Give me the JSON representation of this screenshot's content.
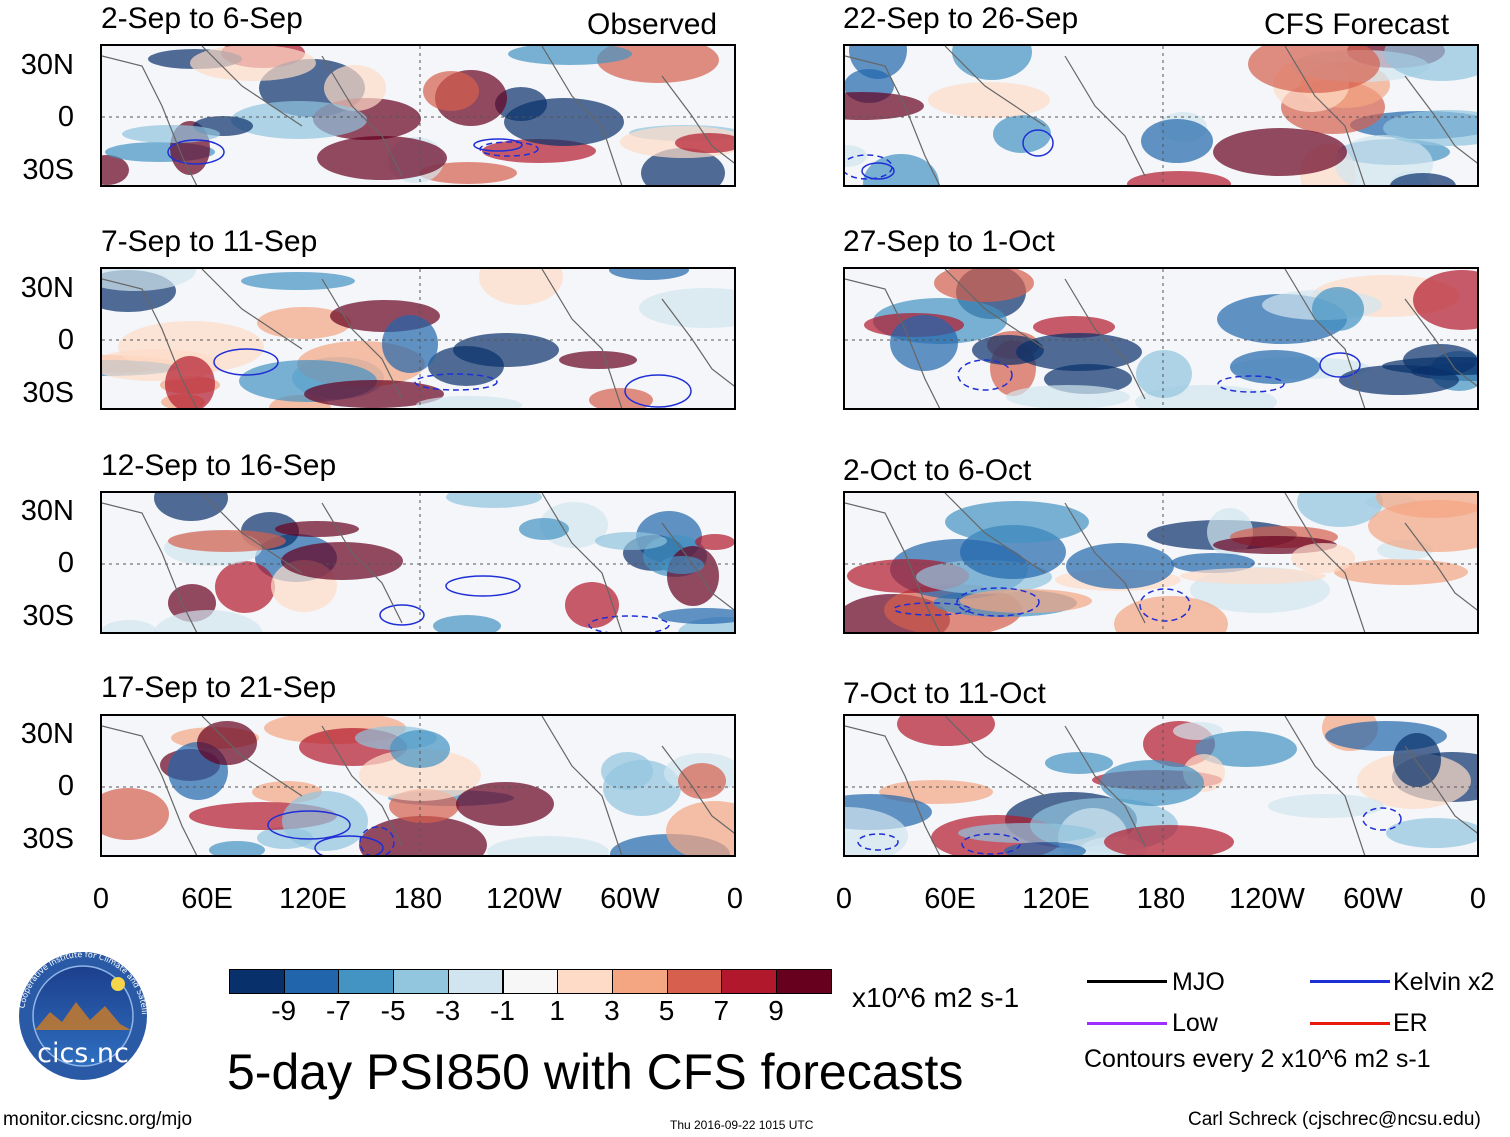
{
  "observed_label": "Observed",
  "forecast_label": "CFS Forecast",
  "panels_left": [
    {
      "title": "2-Sep to 6-Sep"
    },
    {
      "title": "7-Sep to 11-Sep"
    },
    {
      "title": "12-Sep to 16-Sep"
    },
    {
      "title": "17-Sep to 21-Sep"
    }
  ],
  "panels_right": [
    {
      "title": "22-Sep to 26-Sep"
    },
    {
      "title": "27-Sep to 1-Oct"
    },
    {
      "title": "2-Oct to 6-Oct"
    },
    {
      "title": "7-Oct to 11-Oct"
    }
  ],
  "lat_labels": [
    "30N",
    "0",
    "30S"
  ],
  "lon_labels": [
    "0",
    "60E",
    "120E",
    "180",
    "120W",
    "60W",
    "0"
  ],
  "colorbar": {
    "unit": "x10^6 m2 s-1",
    "colors": [
      "#08306b",
      "#2166ac",
      "#4393c3",
      "#92c5de",
      "#d1e5f0",
      "#f7f7f7",
      "#fddbc7",
      "#f4a582",
      "#d6604d",
      "#b2182b",
      "#67001f"
    ],
    "labels": [
      "-9",
      "-7",
      "-5",
      "-3",
      "-1",
      "1",
      "3",
      "5",
      "7",
      "9"
    ]
  },
  "legend": {
    "mjo": "MJO",
    "kelvin": "Kelvin x2",
    "low": "Low",
    "er": "ER",
    "contours": "Contours every 2 x10^6 m2 s-1",
    "colors": {
      "mjo": "#000000",
      "kelvin": "#1f2fd6",
      "low": "#9b30ff",
      "er": "#e8180c"
    }
  },
  "main_title": "5-day PSI850 with CFS forecasts",
  "logo_text": "cics.nc",
  "logo_ring_text": "Cooperative Institute for Climate and Satellites",
  "footer": {
    "url": "monitor.cicsnc.org/mjo",
    "timestamp": "Thu 2016-09-22 1015 UTC",
    "author": "Carl Schreck (cjschrec@ncsu.edu)"
  }
}
